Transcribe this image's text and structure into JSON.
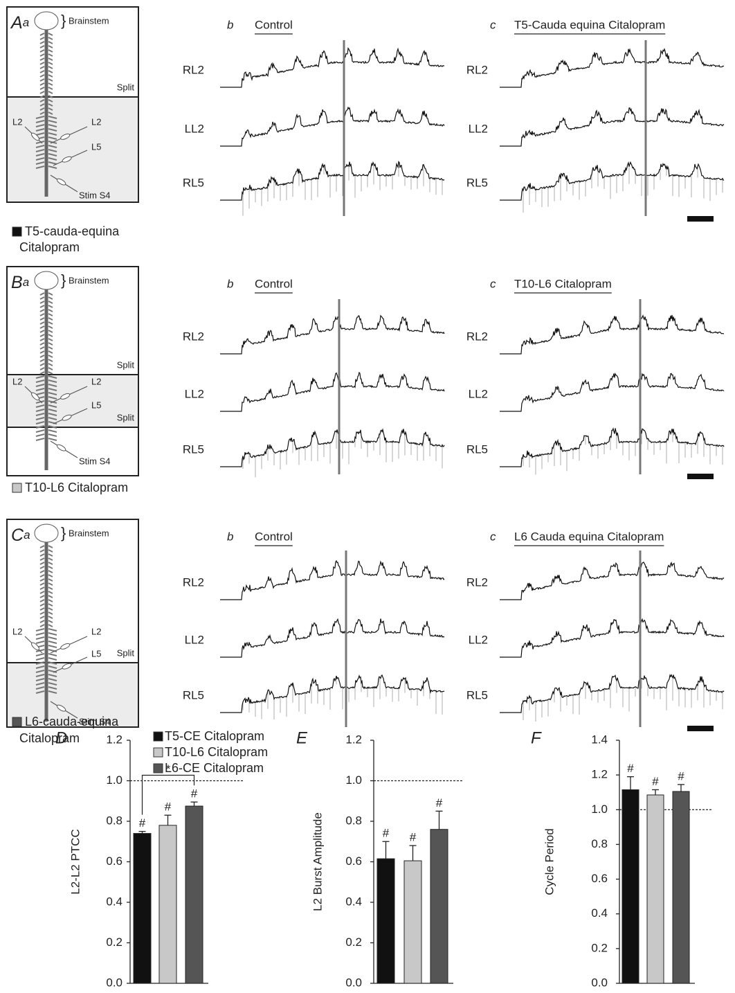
{
  "panels": [
    {
      "letter": "A",
      "sub": "a",
      "brainstem": "Brainstem",
      "splits": [
        "Split"
      ],
      "roots": [
        "L2",
        "L2",
        "L5"
      ],
      "stim": "Stim S4",
      "caption": [
        "T5-cauda-equina",
        "Citalopram"
      ],
      "caption_color": "#111111",
      "traces": [
        {
          "letter": "b",
          "title": "Control",
          "channels": [
            "RL2",
            "LL2",
            "RL5"
          ]
        },
        {
          "letter": "c",
          "title": "T5-Cauda equina Citalopram",
          "channels": [
            "RL2",
            "LL2",
            "RL5"
          ]
        }
      ]
    },
    {
      "letter": "B",
      "sub": "a",
      "brainstem": "Brainstem",
      "splits": [
        "Split",
        "Split"
      ],
      "roots": [
        "L2",
        "L2",
        "L5"
      ],
      "stim": "Stim S4",
      "caption": [
        "T10-L6 Citalopram"
      ],
      "caption_color": "#c8c8c8",
      "traces": [
        {
          "letter": "b",
          "title": "Control",
          "channels": [
            "RL2",
            "LL2",
            "RL5"
          ]
        },
        {
          "letter": "c",
          "title": "T10-L6 Citalopram",
          "channels": [
            "RL2",
            "LL2",
            "RL5"
          ]
        }
      ]
    },
    {
      "letter": "C",
      "sub": "a",
      "brainstem": "Brainstem",
      "splits": [
        "Split"
      ],
      "roots": [
        "L2",
        "L2",
        "L5"
      ],
      "stim": "Stim S4",
      "caption": [
        "L6-cauda-equina",
        "Citalopram"
      ],
      "caption_color": "#555555",
      "traces": [
        {
          "letter": "b",
          "title": "Control",
          "channels": [
            "RL2",
            "LL2",
            "RL5"
          ]
        },
        {
          "letter": "c",
          "title": "L6 Cauda equina Citalopram",
          "channels": [
            "RL2",
            "LL2",
            "RL5"
          ]
        }
      ]
    }
  ],
  "legend": [
    {
      "name": "T5-CE Citalopram",
      "color": "#111111"
    },
    {
      "name": "T10-L6 Citalopram",
      "color": "#c8c8c8"
    },
    {
      "name": "L6-CE Citalopram",
      "color": "#555555"
    }
  ],
  "chart_data": [
    {
      "type": "bar",
      "label": "D",
      "ylabel": "L2-L2 PTCC",
      "values": [
        0.74,
        0.78,
        0.875
      ],
      "errors": [
        0.01,
        0.05,
        0.02
      ],
      "annotations": [
        "#",
        "#",
        "#"
      ],
      "bracket_label": "*",
      "reference_line": 1,
      "ylim": [
        0,
        1.2
      ],
      "yticks": [
        {
          "value": 0,
          "label": "0.0"
        },
        0.2,
        0.4,
        0.6,
        0.8,
        {
          "value": 1,
          "label": "1.0"
        },
        1.2
      ]
    },
    {
      "type": "bar",
      "label": "E",
      "ylabel": "L2 Burst Amplitude",
      "values": [
        0.615,
        0.605,
        0.76
      ],
      "errors": [
        0.085,
        0.075,
        0.09
      ],
      "annotations": [
        "#",
        "#",
        "#"
      ],
      "reference_line": 1,
      "ylim": [
        0,
        1.2
      ],
      "yticks": [
        {
          "value": 0,
          "label": "0.0"
        },
        0.2,
        0.4,
        0.6,
        0.8,
        {
          "value": 1,
          "label": "1.0"
        },
        1.2
      ]
    },
    {
      "type": "bar",
      "label": "F",
      "ylabel": "Cycle Period",
      "values": [
        1.115,
        1.085,
        1.105
      ],
      "errors": [
        0.075,
        0.03,
        0.04
      ],
      "annotations": [
        "#",
        "#",
        "#"
      ],
      "reference_line": 1,
      "ylim": [
        0,
        1.4
      ],
      "yticks": [
        {
          "value": 0,
          "label": "0.0"
        },
        0.2,
        0.4,
        0.6,
        0.8,
        {
          "value": 1,
          "label": "1.0"
        },
        1.2,
        1.4
      ]
    }
  ]
}
